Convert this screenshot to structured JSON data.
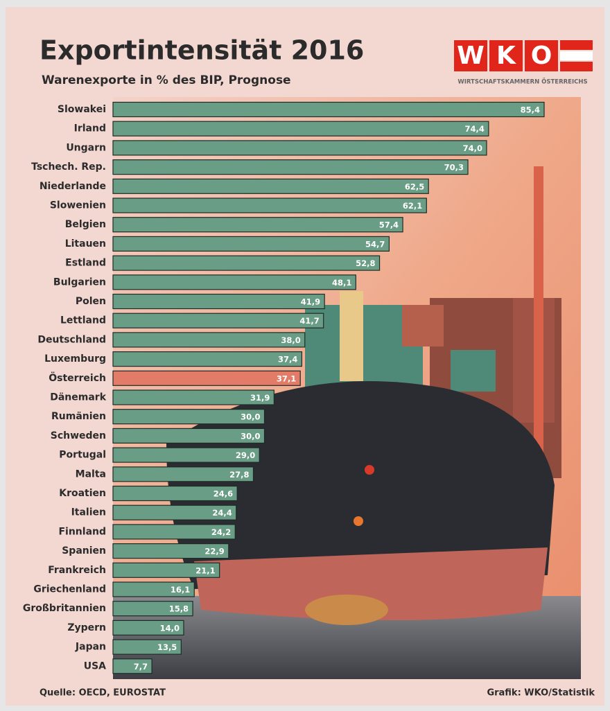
{
  "chart_data": {
    "type": "hbar",
    "title": "Exportintensität 2016",
    "subtitle": "Warenexporte in % des BIP, Prognose",
    "logo_letters": [
      "W",
      "K",
      "O"
    ],
    "logo_text": "WIRTSCHAFTSKAMMERN ÖSTERREICHS",
    "source": "Quelle: OECD, EUROSTAT",
    "credit": "Grafik: WKO/Statistik",
    "categories": [
      "Slowakei",
      "Irland",
      "Ungarn",
      "Tschech. Rep.",
      "Niederlande",
      "Slowenien",
      "Belgien",
      "Litauen",
      "Estland",
      "Bulgarien",
      "Polen",
      "Lettland",
      "Deutschland",
      "Luxemburg",
      "Österreich",
      "Dänemark",
      "Rumänien",
      "Schweden",
      "Portugal",
      "Malta",
      "Kroatien",
      "Italien",
      "Finnland",
      "Spanien",
      "Frankreich",
      "Griechenland",
      "Großbritannien",
      "Zypern",
      "Japan",
      "USA"
    ],
    "values": [
      85.4,
      74.4,
      74.0,
      70.3,
      62.5,
      62.1,
      57.4,
      54.7,
      52.8,
      48.1,
      41.9,
      41.7,
      38.0,
      37.4,
      37.1,
      31.9,
      30.0,
      30.0,
      29.0,
      27.8,
      24.6,
      24.4,
      24.2,
      22.9,
      21.1,
      16.1,
      15.8,
      14.0,
      13.5,
      7.7
    ],
    "value_labels": [
      "85,4",
      "74,4",
      "74,0",
      "70,3",
      "62,5",
      "62,1",
      "57,4",
      "54,7",
      "52,8",
      "48,1",
      "41,9",
      "41,7",
      "38,0",
      "37,4",
      "37,1",
      "31,9",
      "30,0",
      "30,0",
      "29,0",
      "27,8",
      "24,6",
      "24,4",
      "24,2",
      "22,9",
      "21,1",
      "16,1",
      "15,8",
      "14,0",
      "13,5",
      "7,7"
    ],
    "colors": [
      "#6a9d86",
      "#6a9d86",
      "#6a9d86",
      "#6a9d86",
      "#6a9d86",
      "#6a9d86",
      "#6a9d86",
      "#6a9d86",
      "#6a9d86",
      "#6a9d86",
      "#6a9d86",
      "#6a9d86",
      "#6a9d86",
      "#6a9d86",
      "#e27b68",
      "#6a9d86",
      "#6a9d86",
      "#6a9d86",
      "#6a9d86",
      "#6a9d86",
      "#6a9d86",
      "#6a9d86",
      "#6a9d86",
      "#6a9d86",
      "#6a9d86",
      "#6a9d86",
      "#6a9d86",
      "#6a9d86",
      "#6a9d86",
      "#6a9d86"
    ]
  }
}
